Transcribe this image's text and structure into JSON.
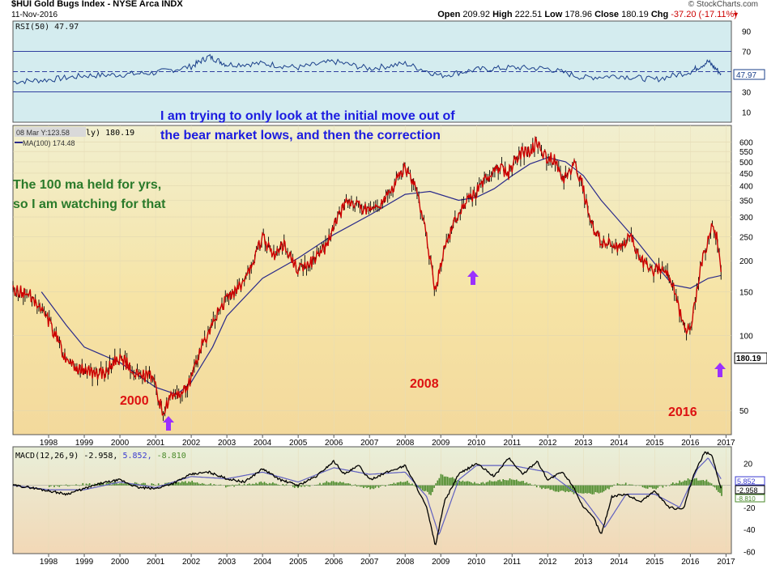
{
  "header": {
    "title": "$HUI Gold Bugs Index - NYSE Arca INDX",
    "date": "11-Nov-2016",
    "watermark": "© StockCharts.com",
    "quote": [
      {
        "label": "Open",
        "value": "209.92"
      },
      {
        "label": "High",
        "value": "222.51"
      },
      {
        "label": "Low",
        "value": "178.96"
      },
      {
        "label": "Close",
        "value": "180.19"
      },
      {
        "label": "Chg",
        "value": "-37.20 (-17.11%)"
      }
    ],
    "chg_arrow": "▼"
  },
  "annotations": {
    "blue_note_line1": "I am trying to only look at the initial move out of",
    "blue_note_line2": "the bear market lows, and then the correction",
    "green_note_line1": "The 100 ma held for yrs,",
    "green_note_line2": "so I am watching for that",
    "label_2000": "2000",
    "label_2008": "2008",
    "label_2016": "2016"
  },
  "legend": {
    "rsi": "RSI(50) 47.97",
    "price_line": "08 Mar Y:123.58",
    "price_suffix": "ly) 180.19",
    "ma": "MA(100) 174.48",
    "macd_label": "MACD(12,26,9)",
    "macd_val": "-2.958,",
    "macd_signal": "5.852,",
    "macd_hist": "-8.810"
  },
  "colors": {
    "price": "#cc0000",
    "price_bar": "#000000",
    "ma": "#2a2a8a",
    "annotation_red": "#dd1111",
    "annotation_blue": "#1c1ce0",
    "annotation_green": "#2a7a2a",
    "arrow": "#9b30ff",
    "rsi_band_bg": "#cfe8ee",
    "macd_line": "#000000",
    "macd_signal": "#6060c0",
    "macd_hist": "#4a8a2a"
  },
  "chart_data": [
    {
      "type": "line",
      "panel": "rsi",
      "ylabel": "",
      "y_ticks": [
        90,
        70,
        50,
        30,
        10
      ],
      "ylim": [
        0,
        100
      ],
      "guides": [
        70,
        50,
        30
      ],
      "last_value": "47.97",
      "x": [
        1997.0,
        1998.0,
        1999.0,
        2000.0,
        2001.0,
        2002.0,
        2002.5,
        2003.0,
        2004.0,
        2005.0,
        2006.0,
        2007.0,
        2008.0,
        2009.0,
        2010.0,
        2011.0,
        2012.0,
        2013.0,
        2014.0,
        2015.0,
        2016.0,
        2016.5,
        2016.86
      ],
      "values": [
        40,
        42,
        46,
        47,
        49,
        55,
        65,
        57,
        58,
        54,
        60,
        53,
        58,
        46,
        52,
        54,
        53,
        44,
        46,
        42,
        50,
        60,
        48
      ]
    },
    {
      "type": "line",
      "panel": "price",
      "ylabel": "",
      "log_scale": true,
      "y_ticks": [
        600,
        550,
        500,
        450,
        400,
        350,
        300,
        250,
        200,
        150,
        100,
        50
      ],
      "ylim": [
        40,
        700
      ],
      "last_value": "180.19",
      "x_ticks": [
        "1998",
        "1999",
        "2000",
        "2001",
        "2002",
        "2003",
        "2004",
        "2005",
        "2006",
        "2007",
        "2008",
        "2009",
        "2010",
        "2011",
        "2012",
        "2013",
        "2014",
        "2015",
        "2016",
        "2017"
      ],
      "series": [
        {
          "name": "$HUI",
          "x": [
            1997.0,
            1997.5,
            1998.0,
            1998.5,
            1999.0,
            1999.5,
            2000.0,
            2000.5,
            2000.9,
            2001.2,
            2001.5,
            2001.9,
            2002.3,
            2002.5,
            2002.8,
            2003.2,
            2003.6,
            2004.0,
            2004.3,
            2004.6,
            2005.0,
            2005.4,
            2005.8,
            2006.1,
            2006.4,
            2006.7,
            2007.0,
            2007.5,
            2008.0,
            2008.25,
            2008.5,
            2008.85,
            2009.1,
            2009.4,
            2009.7,
            2010.0,
            2010.3,
            2010.6,
            2010.9,
            2011.2,
            2011.5,
            2011.7,
            2011.9,
            2012.2,
            2012.45,
            2012.6,
            2012.75,
            2012.95,
            2013.2,
            2013.5,
            2013.7,
            2014.0,
            2014.3,
            2014.6,
            2014.9,
            2015.2,
            2015.5,
            2015.8,
            2016.0,
            2016.3,
            2016.6,
            2016.75,
            2016.86
          ],
          "values": [
            155,
            145,
            115,
            80,
            72,
            70,
            82,
            70,
            68,
            50,
            58,
            62,
            92,
            100,
            130,
            150,
            175,
            250,
            210,
            230,
            185,
            200,
            230,
            300,
            350,
            330,
            320,
            360,
            480,
            400,
            300,
            150,
            230,
            290,
            340,
            380,
            430,
            470,
            450,
            540,
            560,
            600,
            530,
            510,
            420,
            450,
            490,
            420,
            280,
            240,
            235,
            220,
            250,
            205,
            180,
            190,
            160,
            110,
            105,
            190,
            270,
            250,
            180.19
          ]
        },
        {
          "name": "MA(100)",
          "x": [
            1997.8,
            1998.5,
            1999.0,
            2000.0,
            2001.0,
            2001.6,
            2002.0,
            2002.6,
            2003.0,
            2004.0,
            2005.0,
            2006.0,
            2007.0,
            2008.0,
            2008.7,
            2009.5,
            2010.0,
            2010.5,
            2011.0,
            2011.5,
            2012.0,
            2012.5,
            2013.0,
            2013.5,
            2014.0,
            2014.5,
            2015.0,
            2015.5,
            2016.0,
            2016.5,
            2016.86
          ],
          "values": [
            150,
            110,
            90,
            78,
            62,
            58,
            65,
            90,
            120,
            170,
            205,
            255,
            305,
            370,
            380,
            350,
            360,
            390,
            440,
            490,
            520,
            500,
            440,
            350,
            290,
            240,
            195,
            160,
            155,
            170,
            174.48
          ]
        }
      ]
    },
    {
      "type": "line",
      "panel": "macd",
      "ylabel": "",
      "y_ticks": [
        20,
        0,
        -20,
        -40,
        -60
      ],
      "ylim": [
        -62,
        35
      ],
      "last_values": [
        "5.852",
        "-2.958",
        "-8.810"
      ],
      "x_ticks": [
        "1998",
        "1999",
        "2000",
        "2001",
        "2002",
        "2003",
        "2004",
        "2005",
        "2006",
        "2007",
        "2008",
        "2009",
        "2010",
        "2011",
        "2012",
        "2013",
        "2014",
        "2015",
        "2016",
        "2017"
      ],
      "series": [
        {
          "name": "MACD",
          "x": [
            1997.0,
            1997.5,
            1998.0,
            1998.5,
            1999.0,
            1999.5,
            2000.0,
            2000.5,
            2001.0,
            2001.5,
            2002.0,
            2002.5,
            2003.0,
            2003.5,
            2004.0,
            2004.5,
            2005.0,
            2005.5,
            2006.0,
            2006.3,
            2006.7,
            2007.0,
            2007.5,
            2008.0,
            2008.3,
            2008.6,
            2008.85,
            2009.1,
            2009.5,
            2010.0,
            2010.5,
            2010.9,
            2011.3,
            2011.7,
            2012.0,
            2012.4,
            2012.7,
            2013.0,
            2013.3,
            2013.5,
            2013.8,
            2014.2,
            2014.6,
            2015.0,
            2015.4,
            2015.8,
            2016.1,
            2016.4,
            2016.6,
            2016.86
          ],
          "values": [
            0,
            -2,
            -5,
            -8,
            -3,
            2,
            5,
            -2,
            -3,
            2,
            10,
            12,
            6,
            3,
            15,
            5,
            0,
            8,
            22,
            10,
            18,
            5,
            12,
            18,
            0,
            -20,
            -55,
            -15,
            10,
            20,
            8,
            25,
            10,
            22,
            5,
            12,
            0,
            -20,
            -30,
            -45,
            -10,
            -8,
            -15,
            -5,
            -20,
            -22,
            10,
            30,
            28,
            -3
          ]
        },
        {
          "name": "Signal",
          "x": [
            1997.0,
            1998.0,
            1999.0,
            2000.0,
            2001.0,
            2002.0,
            2003.0,
            2004.0,
            2005.0,
            2006.0,
            2007.0,
            2008.0,
            2008.6,
            2008.95,
            2009.5,
            2010.0,
            2011.0,
            2012.0,
            2013.0,
            2013.6,
            2014.2,
            2015.0,
            2015.7,
            2016.2,
            2016.5,
            2016.86
          ],
          "values": [
            0,
            -4,
            -4,
            3,
            -2,
            8,
            6,
            12,
            3,
            16,
            10,
            12,
            -10,
            -45,
            5,
            18,
            18,
            12,
            -12,
            -38,
            -8,
            -8,
            -20,
            15,
            25,
            5.852
          ]
        },
        {
          "name": "Histogram",
          "x": [
            1998.0,
            1999.0,
            2000.0,
            2001.0,
            2002.0,
            2003.0,
            2004.0,
            2005.0,
            2006.0,
            2007.0,
            2008.0,
            2008.7,
            2009.0,
            2009.5,
            2010.0,
            2011.0,
            2012.0,
            2013.0,
            2013.5,
            2014.0,
            2015.0,
            2016.0,
            2016.5,
            2016.86
          ],
          "values": [
            -1,
            1,
            2,
            1,
            3,
            -1,
            3,
            -2,
            4,
            -3,
            4,
            -8,
            10,
            4,
            2,
            6,
            -4,
            -8,
            -6,
            2,
            -3,
            6,
            4,
            -8.81
          ]
        }
      ]
    }
  ]
}
